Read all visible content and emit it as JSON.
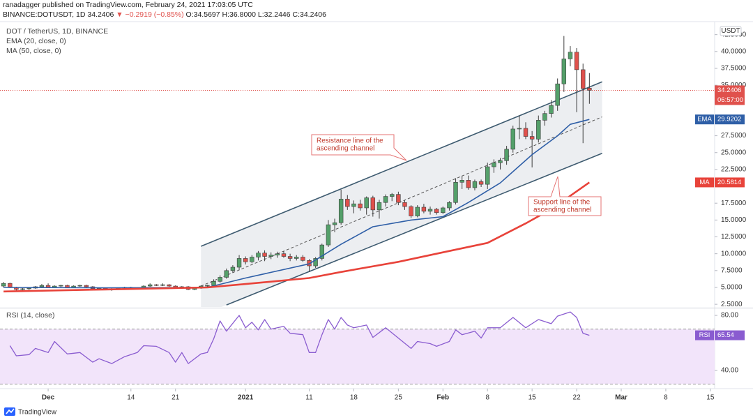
{
  "header": {
    "publisher": "ranadagger published on TradingView.com, February 24, 2021 17:03:05 UTC",
    "symbol": "BINANCE:DOTUSDT, 1D",
    "last": "34.2406",
    "change": "▼ −0.2919 (−0.85%)",
    "ohlc": "O:34.5697 H:36.8000 L:32.2446 C:34.2406"
  },
  "footer": {
    "brand": "TradingView"
  },
  "chart_data": [
    {
      "type": "candlestick",
      "title": "DOT / TetherUS, 1D, BINANCE",
      "currency": "USDT",
      "countdown": "06:57:00",
      "up_color": "#54a06a",
      "down_color": "#e0514c",
      "wick_color": "#3d3d3d",
      "xlim": [
        "2020-11-23",
        "2021-03-16"
      ],
      "ylim": [
        2.1,
        43.5
      ],
      "yticks": [
        {
          "value": 2.5,
          "label": "2.5000"
        },
        {
          "value": 5,
          "label": "5.0000"
        },
        {
          "value": 7.5,
          "label": "7.5000"
        },
        {
          "value": 10,
          "label": "10.0000"
        },
        {
          "value": 12.5,
          "label": "12.5000"
        },
        {
          "value": 15,
          "label": "15.0000"
        },
        {
          "value": 17.5,
          "label": "17.5000"
        },
        {
          "value": 22.5,
          "label": "22.5000"
        },
        {
          "value": 25,
          "label": "25.0000"
        },
        {
          "value": 27.5,
          "label": "27.5000"
        },
        {
          "value": 35,
          "label": "35.0000"
        },
        {
          "value": 37.5,
          "label": "37.5000"
        },
        {
          "value": 40,
          "label": "40.0000"
        },
        {
          "value": 42.5,
          "label": "42.5000"
        }
      ],
      "x": [
        "2020-11-24",
        "2020-11-25",
        "2020-11-26",
        "2020-11-27",
        "2020-11-28",
        "2020-11-29",
        "2020-11-30",
        "2020-12-01",
        "2020-12-02",
        "2020-12-03",
        "2020-12-04",
        "2020-12-05",
        "2020-12-06",
        "2020-12-07",
        "2020-12-08",
        "2020-12-09",
        "2020-12-10",
        "2020-12-11",
        "2020-12-12",
        "2020-12-13",
        "2020-12-14",
        "2020-12-15",
        "2020-12-16",
        "2020-12-17",
        "2020-12-18",
        "2020-12-19",
        "2020-12-20",
        "2020-12-21",
        "2020-12-22",
        "2020-12-23",
        "2020-12-24",
        "2020-12-25",
        "2020-12-26",
        "2020-12-27",
        "2020-12-28",
        "2020-12-29",
        "2020-12-30",
        "2020-12-31",
        "2021-01-01",
        "2021-01-02",
        "2021-01-03",
        "2021-01-04",
        "2021-01-05",
        "2021-01-06",
        "2021-01-07",
        "2021-01-08",
        "2021-01-09",
        "2021-01-10",
        "2021-01-11",
        "2021-01-12",
        "2021-01-13",
        "2021-01-14",
        "2021-01-15",
        "2021-01-16",
        "2021-01-17",
        "2021-01-18",
        "2021-01-19",
        "2021-01-20",
        "2021-01-21",
        "2021-01-22",
        "2021-01-23",
        "2021-01-24",
        "2021-01-25",
        "2021-01-26",
        "2021-01-27",
        "2021-01-28",
        "2021-01-29",
        "2021-01-30",
        "2021-01-31",
        "2021-02-01",
        "2021-02-02",
        "2021-02-03",
        "2021-02-04",
        "2021-02-05",
        "2021-02-06",
        "2021-02-07",
        "2021-02-08",
        "2021-02-09",
        "2021-02-10",
        "2021-02-11",
        "2021-02-12",
        "2021-02-13",
        "2021-02-14",
        "2021-02-15",
        "2021-02-16",
        "2021-02-17",
        "2021-02-18",
        "2021-02-19",
        "2021-02-20",
        "2021-02-21",
        "2021-02-22",
        "2021-02-23",
        "2021-02-24"
      ],
      "open": [
        5.2,
        5.6,
        5.0,
        4.7,
        4.8,
        4.9,
        5.1,
        5.3,
        5.0,
        5.2,
        5.3,
        5.0,
        5.2,
        5.3,
        5.1,
        4.8,
        4.9,
        4.8,
        4.7,
        4.9,
        5.0,
        4.9,
        4.9,
        5.2,
        5.4,
        5.3,
        5.4,
        5.2,
        5.0,
        5.1,
        4.7,
        4.9,
        5.2,
        5.3,
        5.9,
        6.5,
        7.5,
        8.0,
        9.3,
        8.8,
        9.5,
        10.1,
        9.6,
        9.8,
        10.0,
        9.6,
        9.3,
        9.5,
        9.0,
        8.2,
        9.3,
        11.3,
        14.3,
        14.6,
        18.1,
        17.0,
        17.4,
        16.8,
        18.3,
        16.5,
        17.6,
        18.5,
        18.8,
        17.6,
        17.0,
        15.6,
        16.9,
        16.3,
        16.6,
        16.1,
        16.8,
        17.6,
        20.6,
        20.9,
        19.8,
        20.7,
        20.3,
        22.9,
        23.5,
        23.8,
        25.5,
        28.5,
        28.6,
        27.4,
        27.0,
        29.8,
        30.8,
        32.0,
        35.2,
        38.9,
        39.9,
        37.3,
        34.5697
      ],
      "high": [
        5.8,
        5.7,
        5.1,
        4.9,
        5.0,
        5.2,
        5.5,
        5.6,
        5.3,
        5.4,
        5.4,
        5.3,
        5.4,
        5.4,
        5.2,
        5.0,
        5.0,
        4.9,
        5.0,
        5.1,
        5.1,
        5.0,
        5.3,
        5.6,
        5.5,
        5.6,
        5.5,
        5.3,
        5.2,
        5.2,
        5.0,
        5.3,
        5.4,
        6.2,
        6.8,
        7.8,
        8.3,
        9.8,
        9.6,
        9.8,
        10.4,
        10.5,
        10.2,
        10.3,
        10.4,
        10.0,
        9.8,
        9.8,
        9.2,
        9.5,
        11.5,
        15.0,
        15.2,
        19.5,
        18.7,
        17.9,
        18.0,
        18.5,
        18.6,
        18.0,
        18.8,
        19.0,
        19.2,
        17.9,
        17.2,
        17.2,
        17.4,
        17.0,
        16.8,
        17.0,
        17.8,
        21.2,
        21.5,
        21.6,
        21.0,
        21.0,
        23.5,
        24.0,
        24.2,
        26.0,
        29.0,
        30.5,
        29.5,
        28.2,
        30.5,
        31.2,
        32.8,
        36.0,
        42.3,
        40.8,
        40.5,
        38.2,
        36.8
      ],
      "low": [
        5.0,
        4.9,
        4.4,
        4.5,
        4.6,
        4.8,
        5.0,
        4.9,
        4.9,
        5.0,
        4.9,
        4.9,
        5.1,
        5.0,
        4.7,
        4.6,
        4.7,
        4.5,
        4.7,
        4.8,
        4.8,
        4.8,
        4.8,
        5.1,
        5.2,
        5.2,
        5.1,
        4.9,
        4.8,
        4.6,
        4.6,
        4.8,
        5.0,
        5.1,
        5.7,
        6.3,
        7.2,
        7.6,
        8.4,
        8.6,
        9.0,
        8.9,
        9.2,
        9.4,
        9.4,
        8.9,
        9.0,
        8.8,
        7.3,
        7.9,
        9.0,
        11.0,
        13.2,
        14.3,
        16.5,
        16.0,
        16.4,
        15.8,
        15.5,
        15.2,
        17.0,
        17.8,
        17.2,
        16.5,
        15.3,
        15.4,
        16.0,
        15.8,
        15.8,
        15.9,
        16.4,
        17.3,
        19.6,
        19.5,
        19.4,
        19.9,
        19.6,
        22.0,
        22.5,
        23.2,
        25.0,
        27.0,
        27.0,
        22.8,
        26.5,
        29.0,
        30.2,
        31.2,
        34.0,
        37.8,
        31.0,
        26.4,
        32.2446
      ],
      "close": [
        5.6,
        5.0,
        4.7,
        4.8,
        4.9,
        5.1,
        5.3,
        5.0,
        5.2,
        5.3,
        5.0,
        5.2,
        5.3,
        5.1,
        4.8,
        4.9,
        4.8,
        4.7,
        4.9,
        5.0,
        4.9,
        4.9,
        5.2,
        5.4,
        5.3,
        5.4,
        5.2,
        5.0,
        5.1,
        4.7,
        4.9,
        5.2,
        5.3,
        5.9,
        6.5,
        7.5,
        8.0,
        9.3,
        8.8,
        9.5,
        10.1,
        9.6,
        9.8,
        10.0,
        9.6,
        9.3,
        9.5,
        9.0,
        8.2,
        9.3,
        11.3,
        14.3,
        14.6,
        18.1,
        17.0,
        17.4,
        16.8,
        18.3,
        16.5,
        17.6,
        18.5,
        18.8,
        17.6,
        17.0,
        15.6,
        16.9,
        16.3,
        16.6,
        16.1,
        16.8,
        17.6,
        20.6,
        20.9,
        19.8,
        20.7,
        20.3,
        22.9,
        23.5,
        23.8,
        25.5,
        28.5,
        28.6,
        27.4,
        27.0,
        29.8,
        30.8,
        32.0,
        35.2,
        38.9,
        39.9,
        37.3,
        34.5,
        34.2406
      ],
      "series": [
        {
          "name": "EMA (20, close, 0)",
          "tag": "EMA",
          "color": "#2f5fa7",
          "x": [
            "2020-11-24",
            "2020-12-10",
            "2020-12-26",
            "2021-01-01",
            "2021-01-11",
            "2021-01-16",
            "2021-01-21",
            "2021-01-27",
            "2021-02-01",
            "2021-02-05",
            "2021-02-10",
            "2021-02-15",
            "2021-02-19",
            "2021-02-21",
            "2021-02-24"
          ],
          "values": [
            5.0,
            4.95,
            5.0,
            6.4,
            8.5,
            11.4,
            14.0,
            15.0,
            15.5,
            17.6,
            20.5,
            24.7,
            27.5,
            29.2,
            29.9202
          ]
        },
        {
          "name": "MA (50, close, 0)",
          "tag": "MA",
          "color": "#e8433a",
          "x": [
            "2020-11-24",
            "2020-12-10",
            "2020-12-26",
            "2021-01-01",
            "2021-01-11",
            "2021-01-16",
            "2021-01-25",
            "2021-02-01",
            "2021-02-08",
            "2021-02-14",
            "2021-02-18",
            "2021-02-24"
          ],
          "values": [
            4.4,
            4.7,
            5.0,
            5.5,
            6.4,
            7.3,
            8.8,
            10.2,
            11.6,
            14.5,
            16.6,
            20.5814
          ]
        }
      ],
      "channel_fill": "#eceef1",
      "trendlines": [
        {
          "x": [
            "2020-12-25",
            "2021-02-26"
          ],
          "values": [
            11.1,
            35.5
          ],
          "style": "solid",
          "color": "#3e5b70"
        },
        {
          "x": [
            "2020-12-29",
            "2021-02-26"
          ],
          "values": [
            2.4,
            24.9
          ],
          "style": "solid",
          "color": "#3e5b70"
        },
        {
          "x": [
            "2020-12-25",
            "2021-02-26"
          ],
          "values": [
            5.2,
            30.3
          ],
          "style": "dashed",
          "color": "#555555"
        }
      ],
      "annotations": [
        {
          "lines": [
            "Resistance line of the",
            "ascending channel"
          ]
        },
        {
          "lines": [
            "Support line of the",
            "ascending channel"
          ]
        }
      ]
    },
    {
      "type": "line",
      "title": "RSI (14, close)",
      "xlim": [
        "2020-11-23",
        "2021-03-16"
      ],
      "ylim": [
        27.8,
        84.6
      ],
      "yticks": [
        {
          "value": 40,
          "label": "40.00"
        },
        {
          "value": 80,
          "label": "80.00"
        }
      ],
      "band": [
        30,
        70
      ],
      "band_color": "#f2e4fa",
      "xticks": [
        {
          "value": "2020-12-01",
          "label": "Dec"
        },
        {
          "value": "2020-12-14",
          "label": "14"
        },
        {
          "value": "2020-12-21",
          "label": "21"
        },
        {
          "value": "2021-01-01",
          "label": "2021"
        },
        {
          "value": "2021-01-11",
          "label": "11"
        },
        {
          "value": "2021-01-18",
          "label": "18"
        },
        {
          "value": "2021-01-25",
          "label": "25"
        },
        {
          "value": "2021-02-01",
          "label": "Feb"
        },
        {
          "value": "2021-02-08",
          "label": "8"
        },
        {
          "value": "2021-02-15",
          "label": "15"
        },
        {
          "value": "2021-02-22",
          "label": "22"
        },
        {
          "value": "2021-03-01",
          "label": "Mar"
        },
        {
          "value": "2021-03-08",
          "label": "8"
        },
        {
          "value": "2021-03-15",
          "label": "15"
        }
      ],
      "series": [
        {
          "tag": "RSI",
          "color": "#8a5cd0",
          "x": [
            "2020-11-25",
            "2020-11-26",
            "2020-11-28",
            "2020-11-29",
            "2020-12-01",
            "2020-12-02",
            "2020-12-04",
            "2020-12-06",
            "2020-12-08",
            "2020-12-09",
            "2020-12-11",
            "2020-12-13",
            "2020-12-15",
            "2020-12-16",
            "2020-12-18",
            "2020-12-20",
            "2020-12-21",
            "2020-12-22",
            "2020-12-23",
            "2020-12-25",
            "2020-12-26",
            "2020-12-27",
            "2020-12-28",
            "2020-12-29",
            "2020-12-31",
            "2021-01-01",
            "2021-01-02",
            "2021-01-03",
            "2021-01-04",
            "2021-01-05",
            "2021-01-07",
            "2021-01-08",
            "2021-01-10",
            "2021-01-11",
            "2021-01-12",
            "2021-01-13",
            "2021-01-14",
            "2021-01-15",
            "2021-01-16",
            "2021-01-17",
            "2021-01-18",
            "2021-01-20",
            "2021-01-21",
            "2021-01-23",
            "2021-01-25",
            "2021-01-27",
            "2021-01-28",
            "2021-01-30",
            "2021-01-31",
            "2021-02-02",
            "2021-02-03",
            "2021-02-04",
            "2021-02-06",
            "2021-02-07",
            "2021-02-08",
            "2021-02-10",
            "2021-02-12",
            "2021-02-14",
            "2021-02-16",
            "2021-02-18",
            "2021-02-19",
            "2021-02-21",
            "2021-02-22",
            "2021-02-23",
            "2021-02-24"
          ],
          "values": [
            58,
            50.6,
            51.5,
            56,
            53,
            61,
            52,
            53,
            46,
            48.5,
            45,
            50,
            53,
            58,
            57.5,
            53,
            46,
            53,
            45,
            52,
            53,
            63,
            76,
            68.5,
            80,
            71,
            75,
            69.5,
            77,
            70,
            72,
            67,
            66,
            53,
            53,
            66,
            77,
            70,
            78.5,
            73,
            71,
            73,
            64,
            71,
            63.5,
            56,
            61,
            59.5,
            57.5,
            61,
            69.5,
            66,
            68.5,
            63.5,
            71,
            71,
            78.5,
            71,
            77,
            74,
            79.5,
            82.5,
            78.5,
            67,
            65.54
          ]
        }
      ]
    }
  ]
}
